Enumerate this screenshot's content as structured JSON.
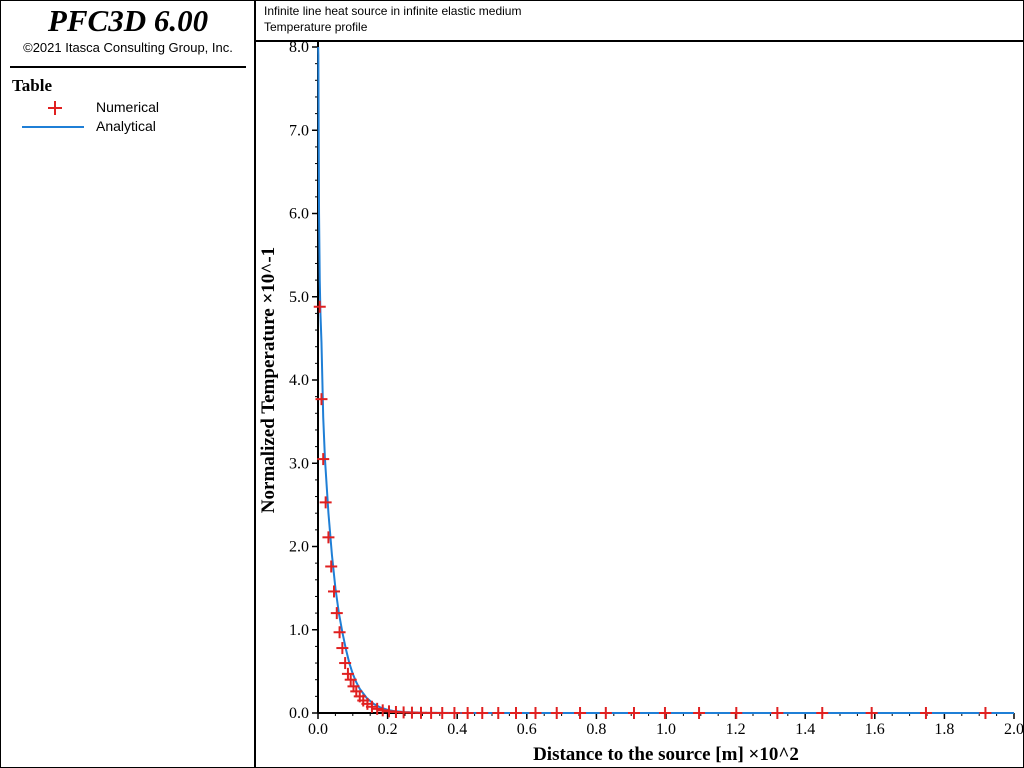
{
  "app": {
    "title": "PFC3D 6.00",
    "copyright": "©2021 Itasca Consulting Group, Inc."
  },
  "legend": {
    "title": "Table",
    "items": [
      {
        "label": "Numerical",
        "symbol": "plus-marker",
        "color": "#e02020"
      },
      {
        "label": "Analytical",
        "symbol": "line",
        "color": "#1f7fd6"
      }
    ]
  },
  "header": {
    "line1": "Infinite line heat source in infinite elastic medium",
    "line2": "Temperature profile"
  },
  "chart_data": {
    "type": "line",
    "xlabel": "Distance to the source [m] ×10^2",
    "ylabel": "Normalized Temperature ×10^-1",
    "xlim": [
      0,
      2.0
    ],
    "ylim": [
      0,
      8.0
    ],
    "x_ticks": [
      "0.0",
      "0.2",
      "0.4",
      "0.6",
      "0.8",
      "1.0",
      "1.2",
      "1.4",
      "1.6",
      "1.8",
      "2.0"
    ],
    "y_ticks": [
      "0.0",
      "1.0",
      "2.0",
      "3.0",
      "4.0",
      "5.0",
      "6.0",
      "7.0",
      "8.0"
    ],
    "series": [
      {
        "name": "Numerical",
        "marker": "plus",
        "color": "#e02020",
        "x": [
          0.005,
          0.01,
          0.015,
          0.022,
          0.03,
          0.038,
          0.046,
          0.054,
          0.062,
          0.07,
          0.078,
          0.086,
          0.094,
          0.102,
          0.11,
          0.12,
          0.13,
          0.142,
          0.155,
          0.17,
          0.186,
          0.204,
          0.224,
          0.246,
          0.27,
          0.296,
          0.325,
          0.357,
          0.392,
          0.43,
          0.472,
          0.518,
          0.569,
          0.625,
          0.686,
          0.753,
          0.827,
          0.908,
          0.997,
          1.095,
          1.202,
          1.32,
          1.449,
          1.591,
          1.747,
          1.918
        ],
        "y": [
          4.88,
          3.77,
          3.05,
          2.53,
          2.11,
          1.76,
          1.46,
          1.2,
          0.97,
          0.78,
          0.6,
          0.47,
          0.4,
          0.32,
          0.26,
          0.2,
          0.15,
          0.11,
          0.075,
          0.05,
          0.032,
          0.02,
          0.012,
          0.007,
          0.004,
          0.002,
          0.001,
          0,
          0,
          0,
          0,
          0,
          0,
          0,
          0,
          0,
          0,
          0,
          0,
          0,
          0,
          0,
          0,
          0,
          0,
          0
        ]
      },
      {
        "name": "Analytical",
        "marker": "none",
        "color": "#1f7fd6",
        "x": [
          0.0005,
          0.001,
          0.002,
          0.003,
          0.005,
          0.007,
          0.01,
          0.015,
          0.02,
          0.03,
          0.04,
          0.05,
          0.06,
          0.07,
          0.08,
          0.09,
          0.1,
          0.11,
          0.12,
          0.14,
          0.16,
          0.18,
          0.2,
          0.22,
          0.25,
          0.3,
          0.35,
          0.4,
          0.5,
          0.6,
          0.8,
          1.0,
          1.2,
          1.5,
          2.0
        ],
        "y": [
          8.0,
          7.9,
          6.9,
          6.0,
          5.2,
          4.8,
          4.45,
          3.55,
          3.05,
          2.4,
          1.9,
          1.5,
          1.2,
          0.97,
          0.77,
          0.6,
          0.47,
          0.37,
          0.29,
          0.18,
          0.11,
          0.065,
          0.038,
          0.022,
          0.01,
          0.003,
          0.001,
          0,
          0,
          0,
          0,
          0,
          0,
          0,
          0
        ]
      }
    ]
  }
}
